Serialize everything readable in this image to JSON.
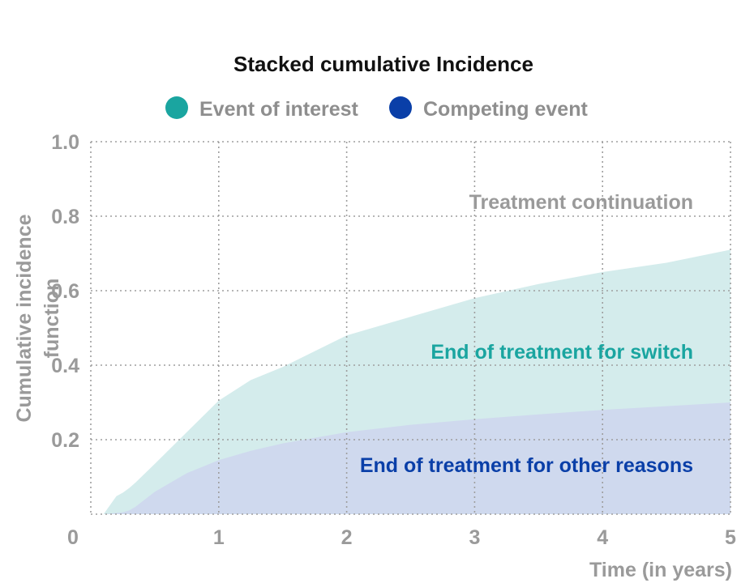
{
  "chart_data": {
    "type": "area",
    "title": "Stacked cumulative Incidence",
    "xlabel": "Time (in years)",
    "ylabel": "Cumulative incidence function",
    "xlim": [
      0,
      5
    ],
    "ylim": [
      0,
      1.0
    ],
    "x_ticks": [
      "0",
      "1",
      "2",
      "3",
      "4",
      "5"
    ],
    "y_ticks": [
      "0.2",
      "0.4",
      "0.6",
      "0.8",
      "1.0"
    ],
    "grid": true,
    "legend_position": "top",
    "series": [
      {
        "name": "Competing event",
        "color": "#0a3fa8",
        "fill": "#cfd9ee",
        "x": [
          0,
          0.1,
          0.25,
          0.3,
          0.35,
          0.5,
          0.75,
          1.0,
          1.25,
          1.5,
          2.0,
          2.5,
          3.0,
          3.5,
          4.0,
          4.5,
          5.0
        ],
        "values": [
          0,
          0,
          0.005,
          0.01,
          0.02,
          0.06,
          0.11,
          0.145,
          0.17,
          0.19,
          0.22,
          0.24,
          0.255,
          0.268,
          0.28,
          0.29,
          0.3
        ]
      },
      {
        "name": "Event of interest",
        "color": "#1aa5a0",
        "fill": "#d4ecec",
        "x": [
          0,
          0.05,
          0.1,
          0.2,
          0.3,
          0.35,
          0.5,
          0.75,
          1.0,
          1.25,
          1.5,
          2.0,
          2.5,
          3.0,
          3.5,
          4.0,
          4.5,
          5.0
        ],
        "values": [
          0,
          0,
          0,
          0.045,
          0.06,
          0.065,
          0.075,
          0.11,
          0.16,
          0.19,
          0.205,
          0.26,
          0.29,
          0.325,
          0.35,
          0.37,
          0.385,
          0.41
        ]
      }
    ],
    "annotations": {
      "continuation": "Treatment continuation",
      "switch": "End of treatment for switch",
      "other": "End of treatment for other reasons"
    },
    "colors": {
      "interest": "#1aa5a0",
      "competing": "#0a3fa8",
      "continuation_text": "#9a9a9a"
    }
  }
}
